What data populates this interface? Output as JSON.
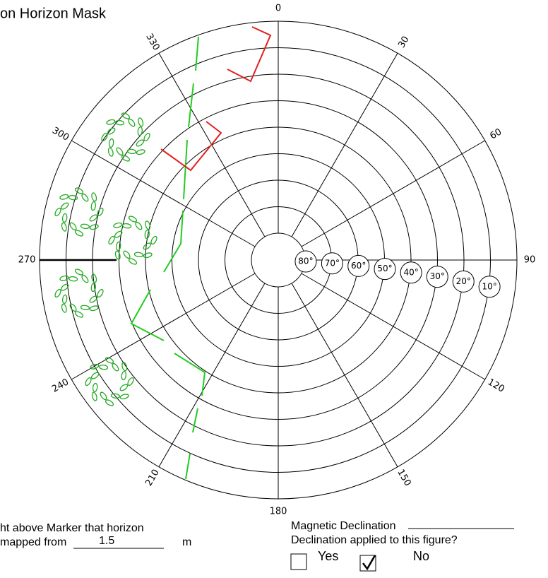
{
  "title": "on Horizon Mask",
  "azimuth_labels": [
    "0",
    "30",
    "60",
    "90",
    "120",
    "150",
    "180",
    "210",
    "240",
    "270",
    "300",
    "330"
  ],
  "elevation_labels": [
    "80°",
    "70°",
    "60°",
    "50°",
    "40°",
    "30°",
    "20°",
    "10°"
  ],
  "height_note": {
    "line1": "ht above Marker that horizon",
    "line2": "mapped from",
    "height": "1.5",
    "unit": "m"
  },
  "declination": {
    "label": "Magnetic Declination",
    "question": "Declination applied to this figure?",
    "yes": "Yes",
    "no": "No"
  }
}
